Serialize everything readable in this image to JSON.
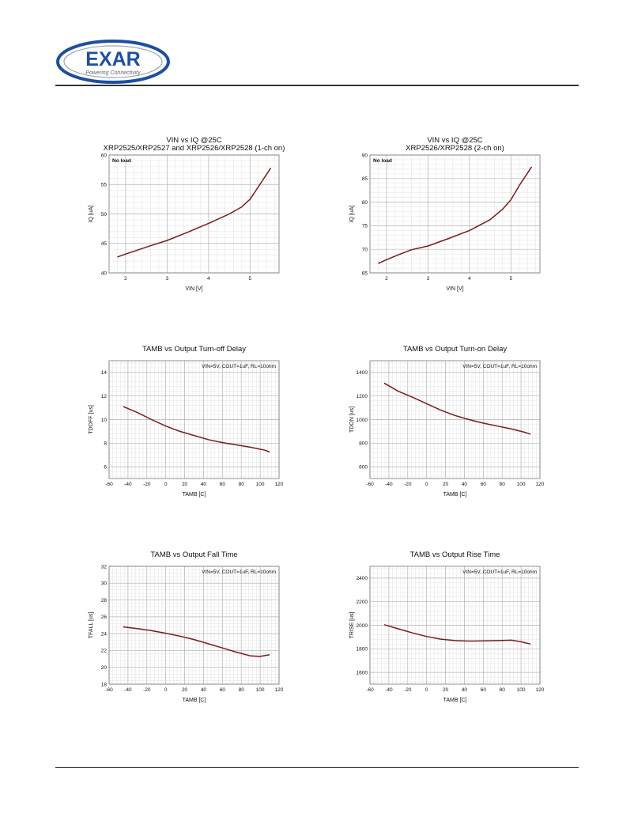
{
  "logo": {
    "text": "EXAR",
    "tagline": "Powering Connectivity"
  },
  "colors": {
    "curve": "#7a1a1a",
    "grid_major": "#b5b5b5",
    "grid_minor": "#e2e2e2",
    "logo_blue": "#1c4fa0"
  },
  "chart_data": [
    {
      "type": "line",
      "title": "VIN vs IQ @25C",
      "subtitle": "XRP2525/XRP2527 and XRP2526/XRP2528 (1-ch on)",
      "note": "No load",
      "xlabel": "VIN [V]",
      "ylabel": "IQ [uA]",
      "xlim": [
        1.6,
        5.7
      ],
      "ylim": [
        40,
        60
      ],
      "xticks": [
        2,
        3,
        4,
        5
      ],
      "yticks": [
        40,
        45,
        50,
        55,
        60
      ],
      "grid": true,
      "x": [
        1.8,
        2.0,
        2.3,
        2.6,
        3.0,
        3.5,
        4.0,
        4.5,
        4.8,
        5.0,
        5.2,
        5.5
      ],
      "y": [
        42.7,
        43.2,
        43.9,
        44.6,
        45.5,
        46.9,
        48.4,
        50.0,
        51.2,
        52.5,
        54.6,
        57.8
      ]
    },
    {
      "type": "line",
      "title": "VIN vs IQ @25C",
      "subtitle": "XRP2526/XRP2528 (2-ch on)",
      "note": "No load",
      "xlabel": "VIN [V]",
      "ylabel": "IQ [uA]",
      "xlim": [
        1.6,
        5.7
      ],
      "ylim": [
        65,
        90
      ],
      "xticks": [
        2,
        3,
        4,
        5
      ],
      "yticks": [
        65,
        70,
        75,
        80,
        85,
        90
      ],
      "grid": true,
      "x": [
        1.8,
        2.0,
        2.3,
        2.6,
        3.0,
        3.5,
        4.0,
        4.5,
        4.8,
        5.0,
        5.2,
        5.5
      ],
      "y": [
        67.0,
        67.8,
        68.9,
        69.9,
        70.7,
        72.3,
        74.0,
        76.3,
        78.5,
        80.5,
        83.5,
        87.5
      ]
    },
    {
      "type": "line",
      "title": "TAMB vs Output Turn-off Delay",
      "note": "VIN=5V, COUT=1uF, RL=10ohm",
      "xlabel": "TAMB [C]",
      "ylabel": "TDOFF [us]",
      "xlim": [
        -60,
        120
      ],
      "ylim": [
        5,
        15
      ],
      "xticks": [
        -60,
        -40,
        -20,
        0,
        20,
        40,
        60,
        80,
        100,
        120
      ],
      "yticks": [
        6,
        8,
        10,
        12,
        14
      ],
      "grid": true,
      "x": [
        -45,
        -30,
        -15,
        0,
        15,
        30,
        45,
        60,
        75,
        90,
        105,
        110
      ],
      "y": [
        11.1,
        10.6,
        10.0,
        9.45,
        9.0,
        8.65,
        8.3,
        8.05,
        7.85,
        7.65,
        7.4,
        7.25
      ]
    },
    {
      "type": "line",
      "title": "TAMB vs Output Turn-on Delay",
      "note": "VIN=5V, COUT=1uF, RL=10ohm",
      "xlabel": "TAMB [C]",
      "ylabel": "TDON [us]",
      "xlim": [
        -60,
        120
      ],
      "ylim": [
        500,
        1500
      ],
      "xticks": [
        -60,
        -40,
        -20,
        0,
        20,
        40,
        60,
        80,
        100,
        120
      ],
      "yticks": [
        600,
        800,
        1000,
        1200,
        1400
      ],
      "grid": true,
      "x": [
        -45,
        -30,
        -15,
        0,
        15,
        30,
        45,
        60,
        75,
        90,
        105,
        110
      ],
      "y": [
        1310,
        1240,
        1190,
        1135,
        1080,
        1035,
        1000,
        970,
        945,
        920,
        890,
        875
      ]
    },
    {
      "type": "line",
      "title": "TAMB vs Output Fall Time",
      "note": "VIN=5V, COUT=1uF, RL=10ohm",
      "xlabel": "TAMB [C]",
      "ylabel": "TFALL [us]",
      "xlim": [
        -60,
        120
      ],
      "ylim": [
        18,
        32
      ],
      "xticks": [
        -60,
        -40,
        -20,
        0,
        20,
        40,
        60,
        80,
        100,
        120
      ],
      "yticks": [
        18,
        20,
        22,
        24,
        26,
        28,
        30,
        32
      ],
      "grid": true,
      "x": [
        -45,
        -30,
        -15,
        0,
        15,
        30,
        45,
        60,
        75,
        90,
        100,
        110
      ],
      "y": [
        24.8,
        24.6,
        24.35,
        24.05,
        23.7,
        23.3,
        22.8,
        22.3,
        21.8,
        21.35,
        21.3,
        21.5
      ]
    },
    {
      "type": "line",
      "title": "TAMB vs Output Rise Time",
      "note": "VIN=5V, COUT=1uF, RL=10ohm",
      "xlabel": "TAMB [C]",
      "ylabel": "TRISE [us]",
      "xlim": [
        -60,
        120
      ],
      "ylim": [
        1500,
        2500
      ],
      "xticks": [
        -60,
        -40,
        -20,
        0,
        20,
        40,
        60,
        80,
        100,
        120
      ],
      "yticks": [
        1600,
        1800,
        2000,
        2200,
        2400
      ],
      "grid": true,
      "x": [
        -45,
        -30,
        -15,
        0,
        15,
        30,
        45,
        60,
        75,
        90,
        100,
        110
      ],
      "y": [
        2005,
        1970,
        1935,
        1905,
        1882,
        1870,
        1866,
        1867,
        1870,
        1873,
        1860,
        1840
      ]
    }
  ]
}
